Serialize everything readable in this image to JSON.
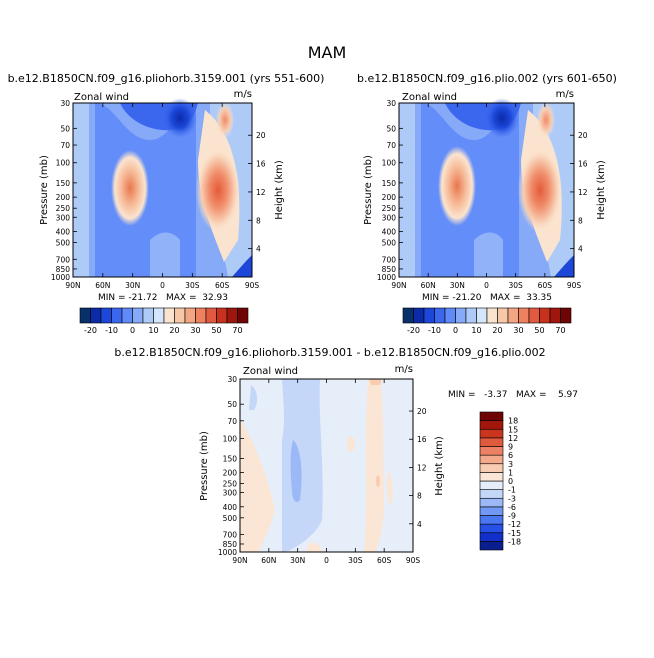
{
  "page": {
    "season_title": "MAM"
  },
  "colors": {
    "cbar_main": [
      "#08306b",
      "#0b2ba8",
      "#1c47d9",
      "#3b67ef",
      "#5f8af7",
      "#86aaf8",
      "#aecbf8",
      "#d3e6fb",
      "#fbe4cf",
      "#f7c8a8",
      "#f3a683",
      "#ee8160",
      "#e15a40",
      "#c7321e",
      "#9e160c",
      "#6e0504"
    ],
    "cbar_diff": [
      "#0a1f8f",
      "#1230c9",
      "#2750e6",
      "#4a76f2",
      "#7198f5",
      "#9bb8f7",
      "#c5d7f9",
      "#e6eef9",
      "#fbe6d6",
      "#f8ccb1",
      "#f3a98b",
      "#ec8163",
      "#e05a3e",
      "#c9351f",
      "#a1170c",
      "#6e0504"
    ]
  },
  "chart_data": [
    {
      "type": "heatmap",
      "title": "b.e12.B1850CN.f09_g16.pliohorb.3159.001 (yrs 551-600)",
      "corner_left": "Zonal wind",
      "corner_right": "m/s",
      "ylabel": "Pressure (mb)",
      "y2label": "Height (km)",
      "xticks": [
        "90N",
        "60N",
        "30N",
        "0",
        "30S",
        "60S",
        "90S"
      ],
      "yticks": [
        "30",
        "50",
        "70",
        "100",
        "150",
        "200",
        "250",
        "300",
        "400",
        "500",
        "700",
        "850",
        "1000"
      ],
      "y2ticks": [
        "20",
        "16",
        "12",
        "8",
        "4"
      ],
      "stats": "MIN = -21.72   MAX =  32.93",
      "min": -21.72,
      "max": 32.93
    },
    {
      "type": "heatmap",
      "title": "b.e12.B1850CN.f09_g16.plio.002 (yrs 601-650)",
      "corner_left": "Zonal wind",
      "corner_right": "m/s",
      "ylabel": "Pressure (mb)",
      "y2label": "Height (km)",
      "xticks": [
        "90N",
        "60N",
        "30N",
        "0",
        "30S",
        "60S",
        "90S"
      ],
      "yticks": [
        "30",
        "50",
        "70",
        "100",
        "150",
        "200",
        "250",
        "300",
        "400",
        "500",
        "700",
        "850",
        "1000"
      ],
      "y2ticks": [
        "20",
        "16",
        "12",
        "8",
        "4"
      ],
      "stats": "MIN = -21.20   MAX =  33.35",
      "min": -21.2,
      "max": 33.35
    },
    {
      "type": "heatmap",
      "title": "b.e12.B1850CN.f09_g16.pliohorb.3159.001 - b.e12.B1850CN.f09_g16.plio.002",
      "corner_left": "Zonal wind",
      "corner_right": "m/s",
      "ylabel": "Pressure (mb)",
      "y2label": "Height (km)",
      "xticks": [
        "90N",
        "60N",
        "30N",
        "0",
        "30S",
        "60S",
        "90S"
      ],
      "yticks": [
        "30",
        "50",
        "70",
        "100",
        "150",
        "200",
        "250",
        "300",
        "400",
        "500",
        "700",
        "850",
        "1000"
      ],
      "y2ticks": [
        "20",
        "16",
        "12",
        "8",
        "4"
      ],
      "stats": "MIN =   -3.37   MAX =    5.97",
      "min": -3.37,
      "max": 5.97
    }
  ],
  "colorbar_main": {
    "labels": [
      "-20",
      "-10",
      "0",
      "10",
      "20",
      "30",
      "50",
      "70"
    ]
  },
  "colorbar_diff": {
    "labels": [
      "18",
      "15",
      "12",
      "9",
      "6",
      "3",
      "1",
      "0",
      "-1",
      "-3",
      "-6",
      "-9",
      "-12",
      "-15",
      "-18"
    ]
  }
}
